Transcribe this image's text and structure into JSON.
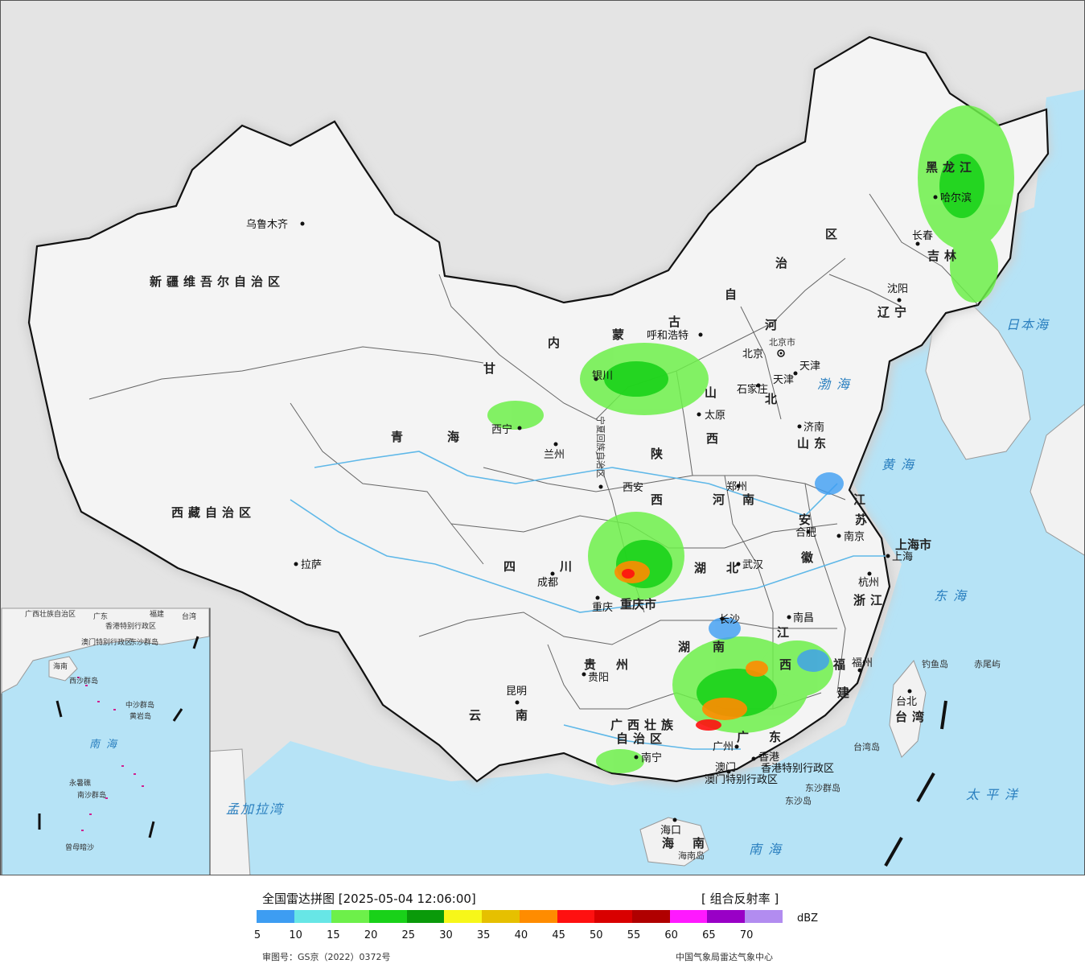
{
  "title": "全国雷达拼图 [2025-05-04 12:06:00]",
  "product": "[ 组合反射率 ]",
  "unit": "dBZ",
  "scale": {
    "colors": [
      "#3d9df2",
      "#67e6e6",
      "#6df04a",
      "#19d119",
      "#0a9a0a",
      "#f7f719",
      "#e6c000",
      "#ff8c00",
      "#ff1010",
      "#d90000",
      "#b00000",
      "#ff19ff",
      "#9900c6",
      "#b28cf0"
    ],
    "ticks": [
      "5",
      "10",
      "15",
      "20",
      "25",
      "30",
      "35",
      "40",
      "45",
      "50",
      "55",
      "60",
      "65",
      "70"
    ]
  },
  "review_no": "审图号：GS京（2022）0372号",
  "issuer": "中国气象局雷达气象中心",
  "colors": {
    "sea": "#b6e3f6",
    "land": "#f2f2f2",
    "outside": "#e4e4e4",
    "rain_light": "#6df04a",
    "rain_mid": "#19d119",
    "rain_heavy": "#ff8c00"
  },
  "regions": {
    "xinjiang": "新疆维吾尔自治区",
    "xizang": "西藏自治区",
    "qinghai1": "青",
    "qinghai2": "海",
    "gansu": "甘",
    "sichuan1": "四",
    "sichuan2": "川",
    "yunnan1": "云",
    "yunnan2": "南",
    "guizhou1": "贵",
    "guizhou2": "州",
    "guangxi1": "广西壮族",
    "guangxi2": "自治区",
    "guangdong1": "广",
    "guangdong2": "东",
    "hunan1": "湖",
    "hunan2": "南",
    "hubei1": "湖",
    "hubei2": "北",
    "jiangxi1": "江",
    "jiangxi2": "西",
    "fujian1": "福",
    "fujian2": "建",
    "zhejiang": "浙江",
    "anhui1": "安",
    "anhui2": "徽",
    "jiangsu1": "江",
    "jiangsu2": "苏",
    "shandong": "山东",
    "henan1": "河",
    "henan2": "南",
    "shaanxi1": "陕",
    "shaanxi2": "西",
    "shanxi1": "山",
    "shanxi2": "西",
    "hebei1": "河",
    "hebei2": "北",
    "neimenggu1": "内",
    "neimenggu2": "蒙",
    "neimenggu3": "古",
    "neimenggu4": "自",
    "neimenggu5": "治",
    "neimenggu6": "区",
    "heilongjiang": "黑龙江",
    "jilin": "吉林",
    "liaoning": "辽宁",
    "ningxia": "宁夏回族自治区",
    "chongqing": "重庆市",
    "shanghai": "上海市",
    "tianjin": "天津",
    "beijing": "北京市",
    "hainan1": "海",
    "hainan2": "南",
    "taiwan": "台湾",
    "hk": "香港特别行政区",
    "macao": "澳门特别行政区"
  },
  "cities": {
    "urumqi": "乌鲁木齐",
    "lhasa": "拉萨",
    "xining": "西宁",
    "lanzhou": "兰州",
    "yinchuan": "银川",
    "hohhot": "呼和浩特",
    "beijing": "北京",
    "tianjin": "天津",
    "shijiazhuang": "石家庄",
    "taiyuan": "太原",
    "jinan": "济南",
    "xian": "西安",
    "zhengzhou": "郑州",
    "hefei": "合肥",
    "nanjing": "南京",
    "shanghai": "上海",
    "hangzhou": "杭州",
    "wuhan": "武汉",
    "chengdu": "成都",
    "chongqing": "重庆",
    "changsha": "长沙",
    "nanchang": "南昌",
    "fuzhou": "福州",
    "guiyang": "贵阳",
    "kunming": "昆明",
    "nanning": "南宁",
    "guangzhou": "广州",
    "hongkong": "香港",
    "macao": "澳门",
    "haikou": "海口",
    "taibei": "台北",
    "shenyang": "沈阳",
    "changchun": "长春",
    "harbin": "哈尔滨"
  },
  "seas": {
    "bohai": "渤海",
    "huanghai": "黄海",
    "donghai": "东海",
    "nanhai": "南海",
    "ribenhai": "日本海",
    "taipingyang": "太平洋",
    "mengjiala": "孟加拉湾"
  },
  "islands": {
    "diaoyu": "钓鱼岛",
    "chiwei": "赤尾屿",
    "dongsha_group": "东沙群岛",
    "dongsha": "东沙岛",
    "hainan_island": "海南岛",
    "taiwan_island": "台湾岛"
  },
  "inset": {
    "guangxi": "广西壮族自治区",
    "guangdong": "广东",
    "fujian": "福建",
    "taiwan": "台湾",
    "hk": "香港特别行政区",
    "macao": "澳门特别行政区",
    "dongsha": "东沙群岛",
    "hainan": "海南",
    "xisha": "西沙群岛",
    "zhongsha": "中沙群岛",
    "huangyan": "黄岩岛",
    "nanhai": "南海",
    "yongshu": "永暑礁",
    "nansha": "南沙群岛",
    "zengmu": "曾母暗沙"
  }
}
